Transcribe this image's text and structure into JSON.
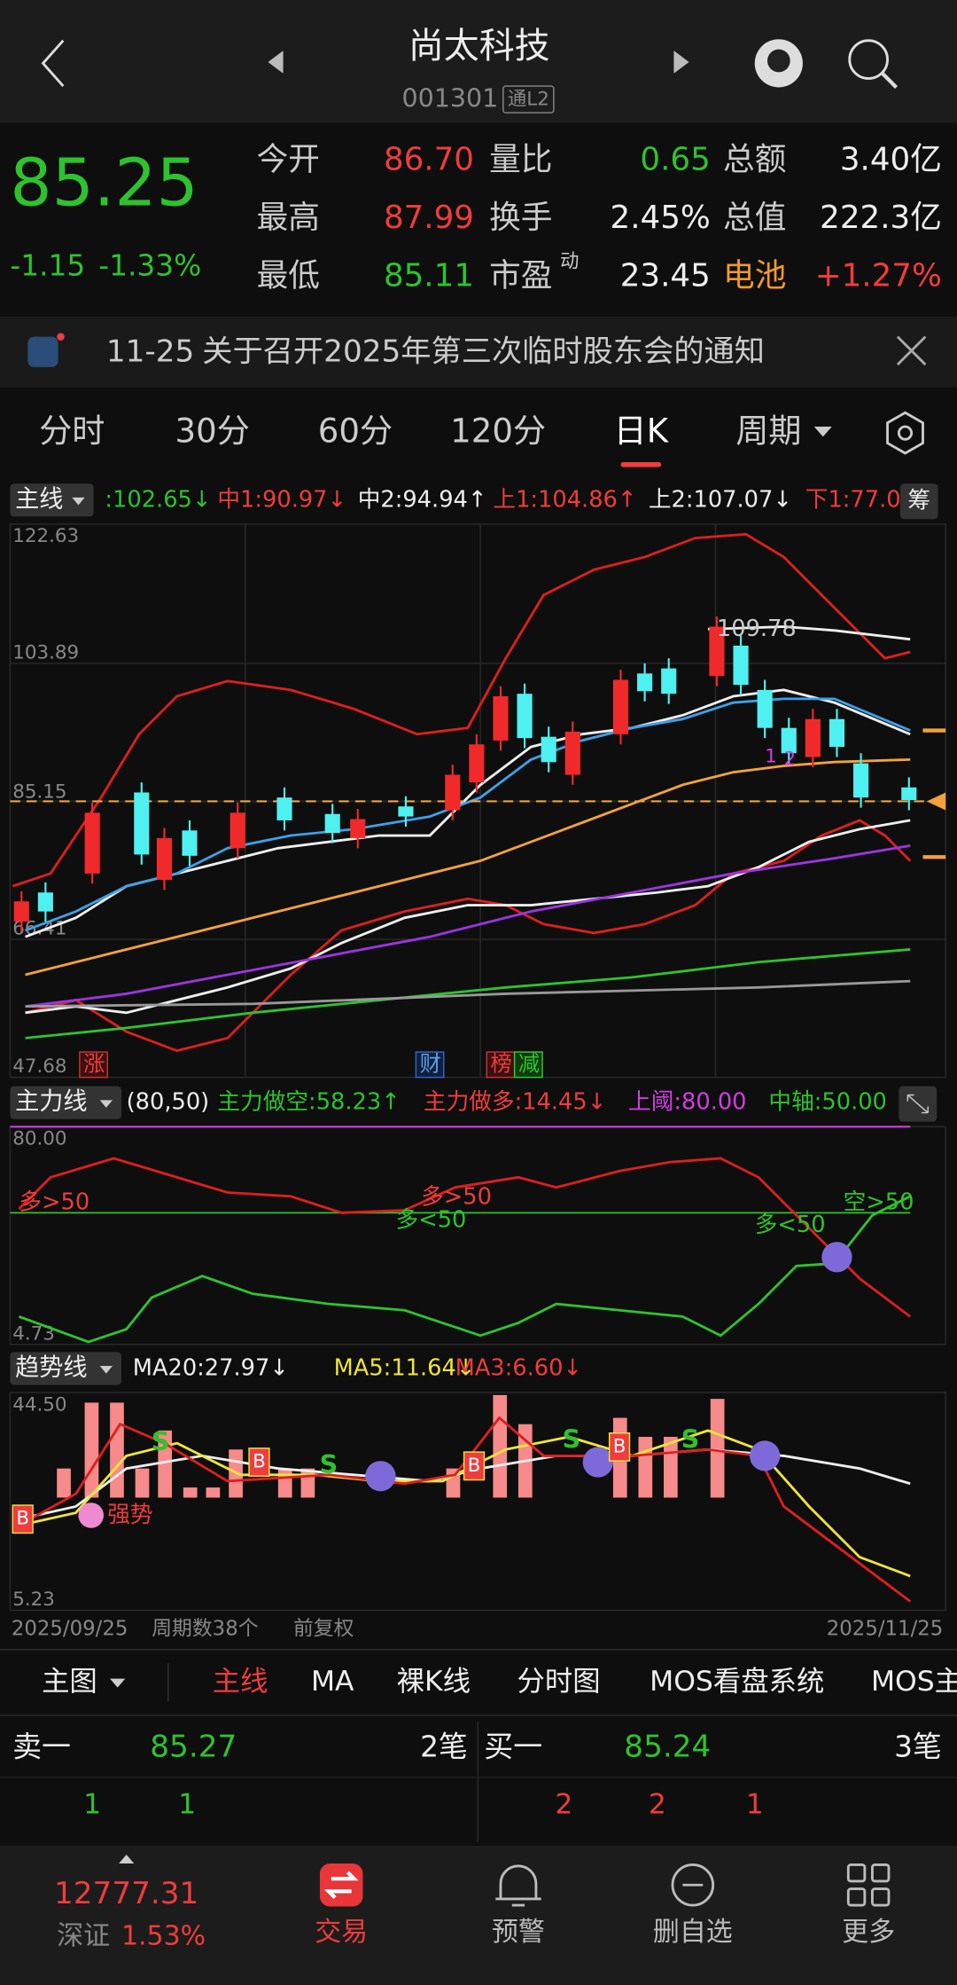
{
  "header": {
    "title": "尚太科技",
    "code": "001301",
    "badge": "通L2"
  },
  "quote": {
    "price": "85.25",
    "change": "-1.15",
    "change_pct": "-1.33%",
    "fields": [
      {
        "label": "今开",
        "value": "86.70"
      },
      {
        "label": "量比",
        "value": "0.65"
      },
      {
        "label": "总额",
        "value": "3.40亿"
      },
      {
        "label": "最高",
        "value": "87.99"
      },
      {
        "label": "换手",
        "value": "2.45%"
      },
      {
        "label": "总值",
        "value": "222.3亿"
      },
      {
        "label": "最低",
        "value": "85.11"
      },
      {
        "label": "市盈",
        "sup": "动",
        "value": "23.45"
      },
      {
        "label": "电池",
        "value": "+1.27%"
      }
    ]
  },
  "notice": {
    "date": "11-25",
    "text": "关于召开2025年第三次临时股东会的通知"
  },
  "tabs": [
    "分时",
    "30分",
    "60分",
    "120分",
    "日K",
    "周期"
  ],
  "main_chart": {
    "legend_title": "主线",
    "legend": [
      ":102.65↓",
      "中1:90.97↓",
      "中2:94.94↑",
      "上1:104.86↑",
      "上2:107.07↓",
      "下1:77.0"
    ],
    "chip": "筹",
    "axis_labels": [
      "122.63",
      "103.89",
      "85.15",
      "66.41",
      "47.68"
    ],
    "peak_label": "109.78",
    "markers": [
      "涨",
      "财",
      "榜",
      "减"
    ],
    "counts": [
      "1",
      "2"
    ]
  },
  "sub1": {
    "legend_title": "主力线",
    "legend": [
      "(80,50)",
      "主力做空:58.23↑",
      "主力做多:14.45↓",
      "上阈:80.00",
      "中轴:50.00"
    ],
    "axis_labels": [
      "80.00",
      "4.73"
    ],
    "annotations": [
      "多>50",
      "多>50",
      "多<50",
      "多<50",
      "空>50"
    ]
  },
  "sub2": {
    "legend_title": "趋势线",
    "legend": [
      "MA20:27.97↓",
      "MA5:11.64↓",
      "MA3:6.60↓"
    ],
    "axis_labels": [
      "44.50",
      "5.23"
    ],
    "annotation": "强势",
    "signals": [
      "S",
      "S",
      "S",
      "S"
    ],
    "buys": [
      "B",
      "B",
      "B",
      "B"
    ]
  },
  "footer_row": {
    "start": "2025/09/25",
    "period": "周期数38个",
    "adjust": "前复权",
    "end": "2025/11/25"
  },
  "toolbar": {
    "main": "主图",
    "items": [
      "主线",
      "MA",
      "裸K线",
      "分时图",
      "MOS看盘系统",
      "MOS主"
    ]
  },
  "orderbook": {
    "sell": {
      "label": "卖一",
      "price": "85.27",
      "count": "2笔",
      "volumes": [
        "1",
        "1"
      ]
    },
    "buy": {
      "label": "买一",
      "price": "85.24",
      "count": "3笔",
      "volumes": [
        "2",
        "2",
        "1"
      ]
    }
  },
  "nav": {
    "index_value": "12777.31",
    "index_name": "深证",
    "index_change": "1.53%",
    "items": [
      "交易",
      "预警",
      "删自选",
      "更多"
    ]
  }
}
